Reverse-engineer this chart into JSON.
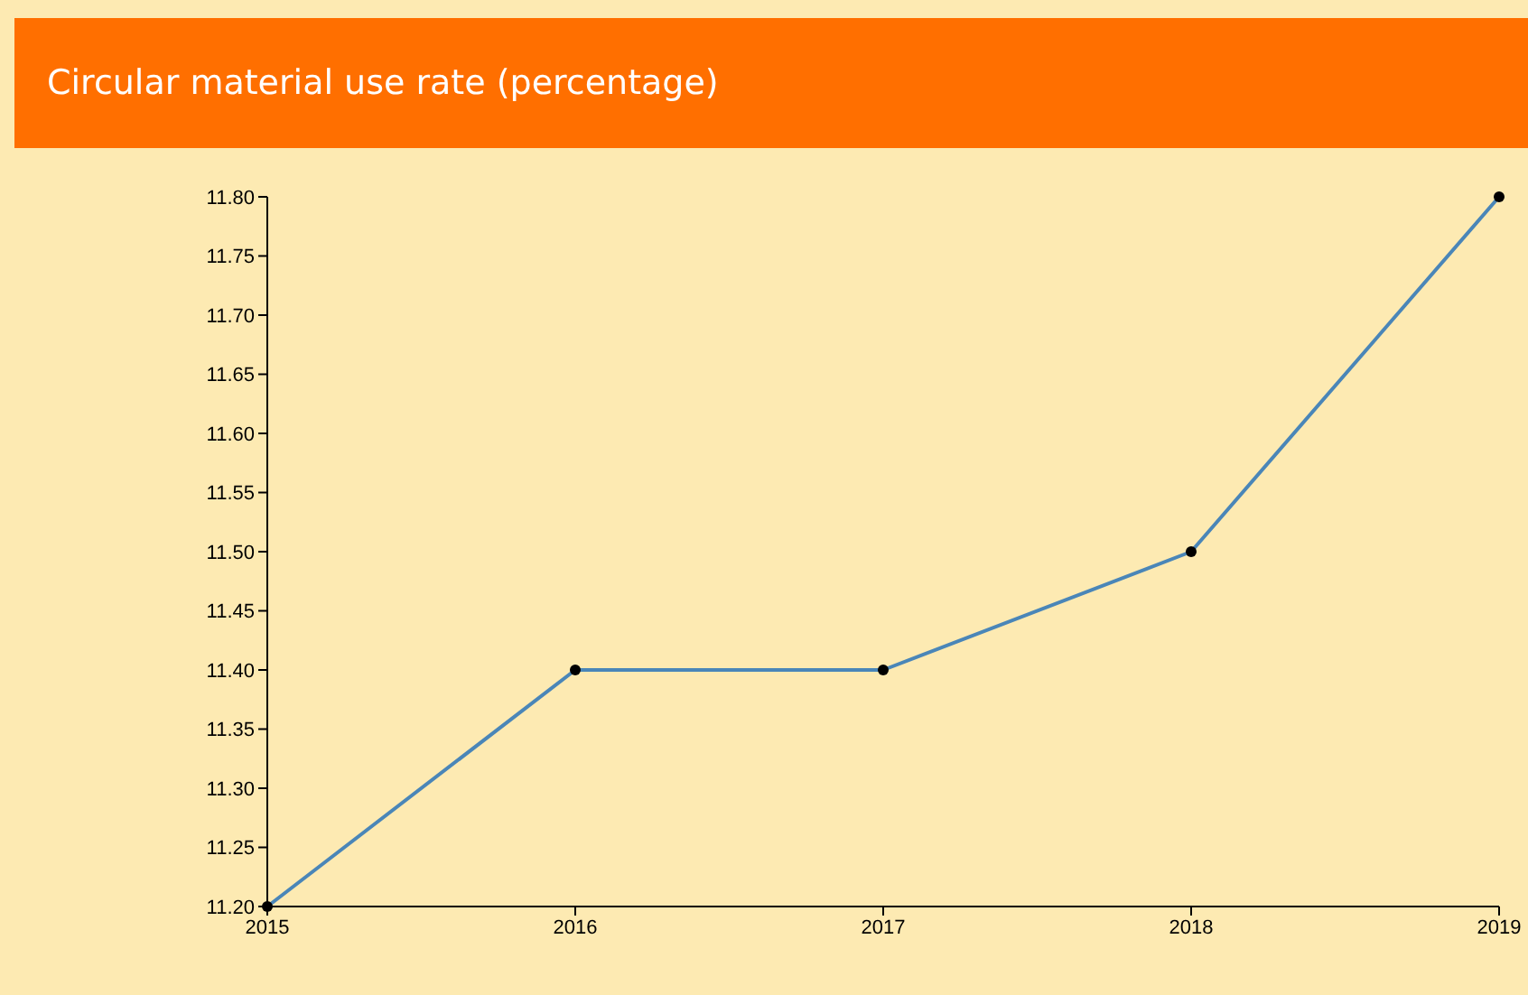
{
  "chart_data": {
    "type": "line",
    "title": "Circular material use rate (percentage)",
    "x": [
      2015,
      2016,
      2017,
      2018,
      2019
    ],
    "series": [
      {
        "color": "#4a86b8",
        "values": [
          11.2,
          11.4,
          11.4,
          11.5,
          11.8
        ]
      }
    ],
    "xlim": [
      2015,
      2019
    ],
    "xticks": [
      2015,
      2016,
      2017,
      2018,
      2019
    ],
    "ylim": [
      11.2,
      11.8
    ],
    "yticks": [
      {
        "value": 11.2,
        "label": "11.20"
      },
      {
        "value": 11.25,
        "label": "11.25"
      },
      {
        "value": 11.3,
        "label": "11.30"
      },
      {
        "value": 11.35,
        "label": "11.35"
      },
      {
        "value": 11.4,
        "label": "11.40"
      },
      {
        "value": 11.45,
        "label": "11.45"
      },
      {
        "value": 11.5,
        "label": "11.50"
      },
      {
        "value": 11.55,
        "label": "11.55"
      },
      {
        "value": 11.6,
        "label": "11.60"
      },
      {
        "value": 11.65,
        "label": "11.65"
      },
      {
        "value": 11.7,
        "label": "11.70"
      },
      {
        "value": 11.75,
        "label": "11.75"
      },
      {
        "value": 11.8,
        "label": "11.80"
      }
    ],
    "grid": false,
    "legend": false,
    "marker": "circle",
    "line_style": "solid"
  }
}
